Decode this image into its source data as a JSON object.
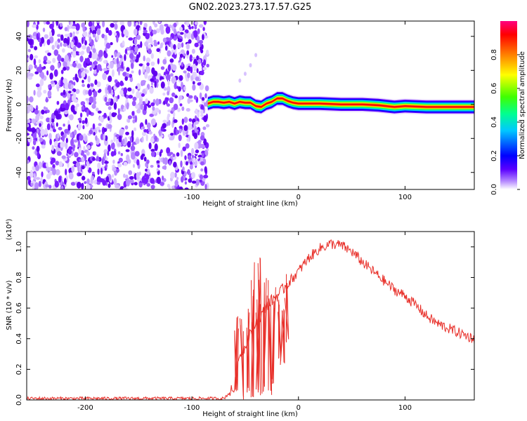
{
  "title": "GN02.2023.273.17.57.G25",
  "chart_data": [
    {
      "type": "heatmap",
      "xlabel": "Height of straight line (km)",
      "ylabel": "Frequency (Hz)",
      "xlim": [
        -255,
        165
      ],
      "ylim": [
        -50,
        49
      ],
      "x_ticks": [
        -200,
        -100,
        0,
        100
      ],
      "y_ticks": [
        40,
        20,
        0,
        -20,
        -40
      ],
      "noise_region_x": [
        -255,
        -85
      ],
      "signal_start_x": -88,
      "signal_center_line": [
        {
          "x": -85,
          "y": 0.5
        },
        {
          "x": -80,
          "y": 1.5
        },
        {
          "x": -75,
          "y": 1.5
        },
        {
          "x": -70,
          "y": 1.0
        },
        {
          "x": -65,
          "y": 1.5
        },
        {
          "x": -60,
          "y": 0.5
        },
        {
          "x": -55,
          "y": 1.5
        },
        {
          "x": -50,
          "y": 1.0
        },
        {
          "x": -45,
          "y": 1.0
        },
        {
          "x": -40,
          "y": -1.0
        },
        {
          "x": -35,
          "y": -1.5
        },
        {
          "x": -30,
          "y": 0.5
        },
        {
          "x": -25,
          "y": 1.5
        },
        {
          "x": -20,
          "y": 3.5
        },
        {
          "x": -15,
          "y": 3.5
        },
        {
          "x": -10,
          "y": 2.0
        },
        {
          "x": -5,
          "y": 1.0
        },
        {
          "x": 0,
          "y": 0.5
        },
        {
          "x": 20,
          "y": 0.5
        },
        {
          "x": 40,
          "y": 0.0
        },
        {
          "x": 60,
          "y": 0.0
        },
        {
          "x": 75,
          "y": -0.5
        },
        {
          "x": 90,
          "y": -1.5
        },
        {
          "x": 100,
          "y": -1.0
        },
        {
          "x": 120,
          "y": -1.5
        },
        {
          "x": 140,
          "y": -1.5
        },
        {
          "x": 165,
          "y": -1.5
        }
      ],
      "faint_trace": [
        {
          "x": -55,
          "y": 14
        },
        {
          "x": -50,
          "y": 18
        },
        {
          "x": -45,
          "y": 23
        },
        {
          "x": -40,
          "y": 29
        }
      ],
      "colorbar": {
        "label": "Normalized spectral amplitude",
        "range": [
          0.0,
          1.0
        ],
        "ticks": [
          "0.0",
          "0.2",
          "0.4",
          "0.6",
          "0.8"
        ]
      }
    },
    {
      "type": "line",
      "xlabel": "Height of straight line (km)",
      "ylabel": "SNR (10 * v/v)",
      "exponent_label": "(x10⁴)",
      "xlim": [
        -255,
        165
      ],
      "ylim": [
        0,
        1.1
      ],
      "x_ticks": [
        -200,
        -100,
        0,
        100
      ],
      "y_ticks": [
        "0.0",
        "0.2",
        "0.4",
        "0.6",
        "0.8",
        "1.0"
      ],
      "series_color": "#e8302a",
      "series": [
        {
          "x": -255,
          "y": 0.01
        },
        {
          "x": -150,
          "y": 0.01
        },
        {
          "x": -70,
          "y": 0.01
        },
        {
          "x": -60,
          "y": 0.08
        },
        {
          "x": -55,
          "y": 0.3
        },
        {
          "x": -50,
          "y": 0.35
        },
        {
          "x": -45,
          "y": 0.45
        },
        {
          "x": -40,
          "y": 0.5
        },
        {
          "x": -35,
          "y": 0.55
        },
        {
          "x": -30,
          "y": 0.62
        },
        {
          "x": -25,
          "y": 0.65
        },
        {
          "x": -20,
          "y": 0.68
        },
        {
          "x": -15,
          "y": 0.72
        },
        {
          "x": -10,
          "y": 0.76
        },
        {
          "x": 0,
          "y": 0.84
        },
        {
          "x": 10,
          "y": 0.93
        },
        {
          "x": 20,
          "y": 0.99
        },
        {
          "x": 30,
          "y": 1.02
        },
        {
          "x": 40,
          "y": 1.01
        },
        {
          "x": 50,
          "y": 0.97
        },
        {
          "x": 60,
          "y": 0.9
        },
        {
          "x": 70,
          "y": 0.84
        },
        {
          "x": 80,
          "y": 0.78
        },
        {
          "x": 90,
          "y": 0.72
        },
        {
          "x": 100,
          "y": 0.68
        },
        {
          "x": 110,
          "y": 0.62
        },
        {
          "x": 120,
          "y": 0.55
        },
        {
          "x": 130,
          "y": 0.5
        },
        {
          "x": 140,
          "y": 0.47
        },
        {
          "x": 150,
          "y": 0.44
        },
        {
          "x": 165,
          "y": 0.4
        }
      ],
      "noise_spikes": [
        {
          "x": -58,
          "low": 0.02,
          "high": 0.6
        },
        {
          "x": -53,
          "low": 0.0,
          "high": 0.55
        },
        {
          "x": -48,
          "low": 0.03,
          "high": 0.6
        },
        {
          "x": -43,
          "low": 0.0,
          "high": 0.9
        },
        {
          "x": -38,
          "low": 0.02,
          "high": 0.72
        },
        {
          "x": -36,
          "low": 0.0,
          "high": 1.0
        },
        {
          "x": -31,
          "low": 0.05,
          "high": 0.8
        },
        {
          "x": -27,
          "low": 0.02,
          "high": 0.82
        },
        {
          "x": -23,
          "low": 0.1,
          "high": 0.78
        },
        {
          "x": -18,
          "low": 0.25,
          "high": 0.75
        },
        {
          "x": -15,
          "low": 0.2,
          "high": 0.72
        },
        {
          "x": -11,
          "low": 0.35,
          "high": 0.85
        }
      ]
    }
  ]
}
